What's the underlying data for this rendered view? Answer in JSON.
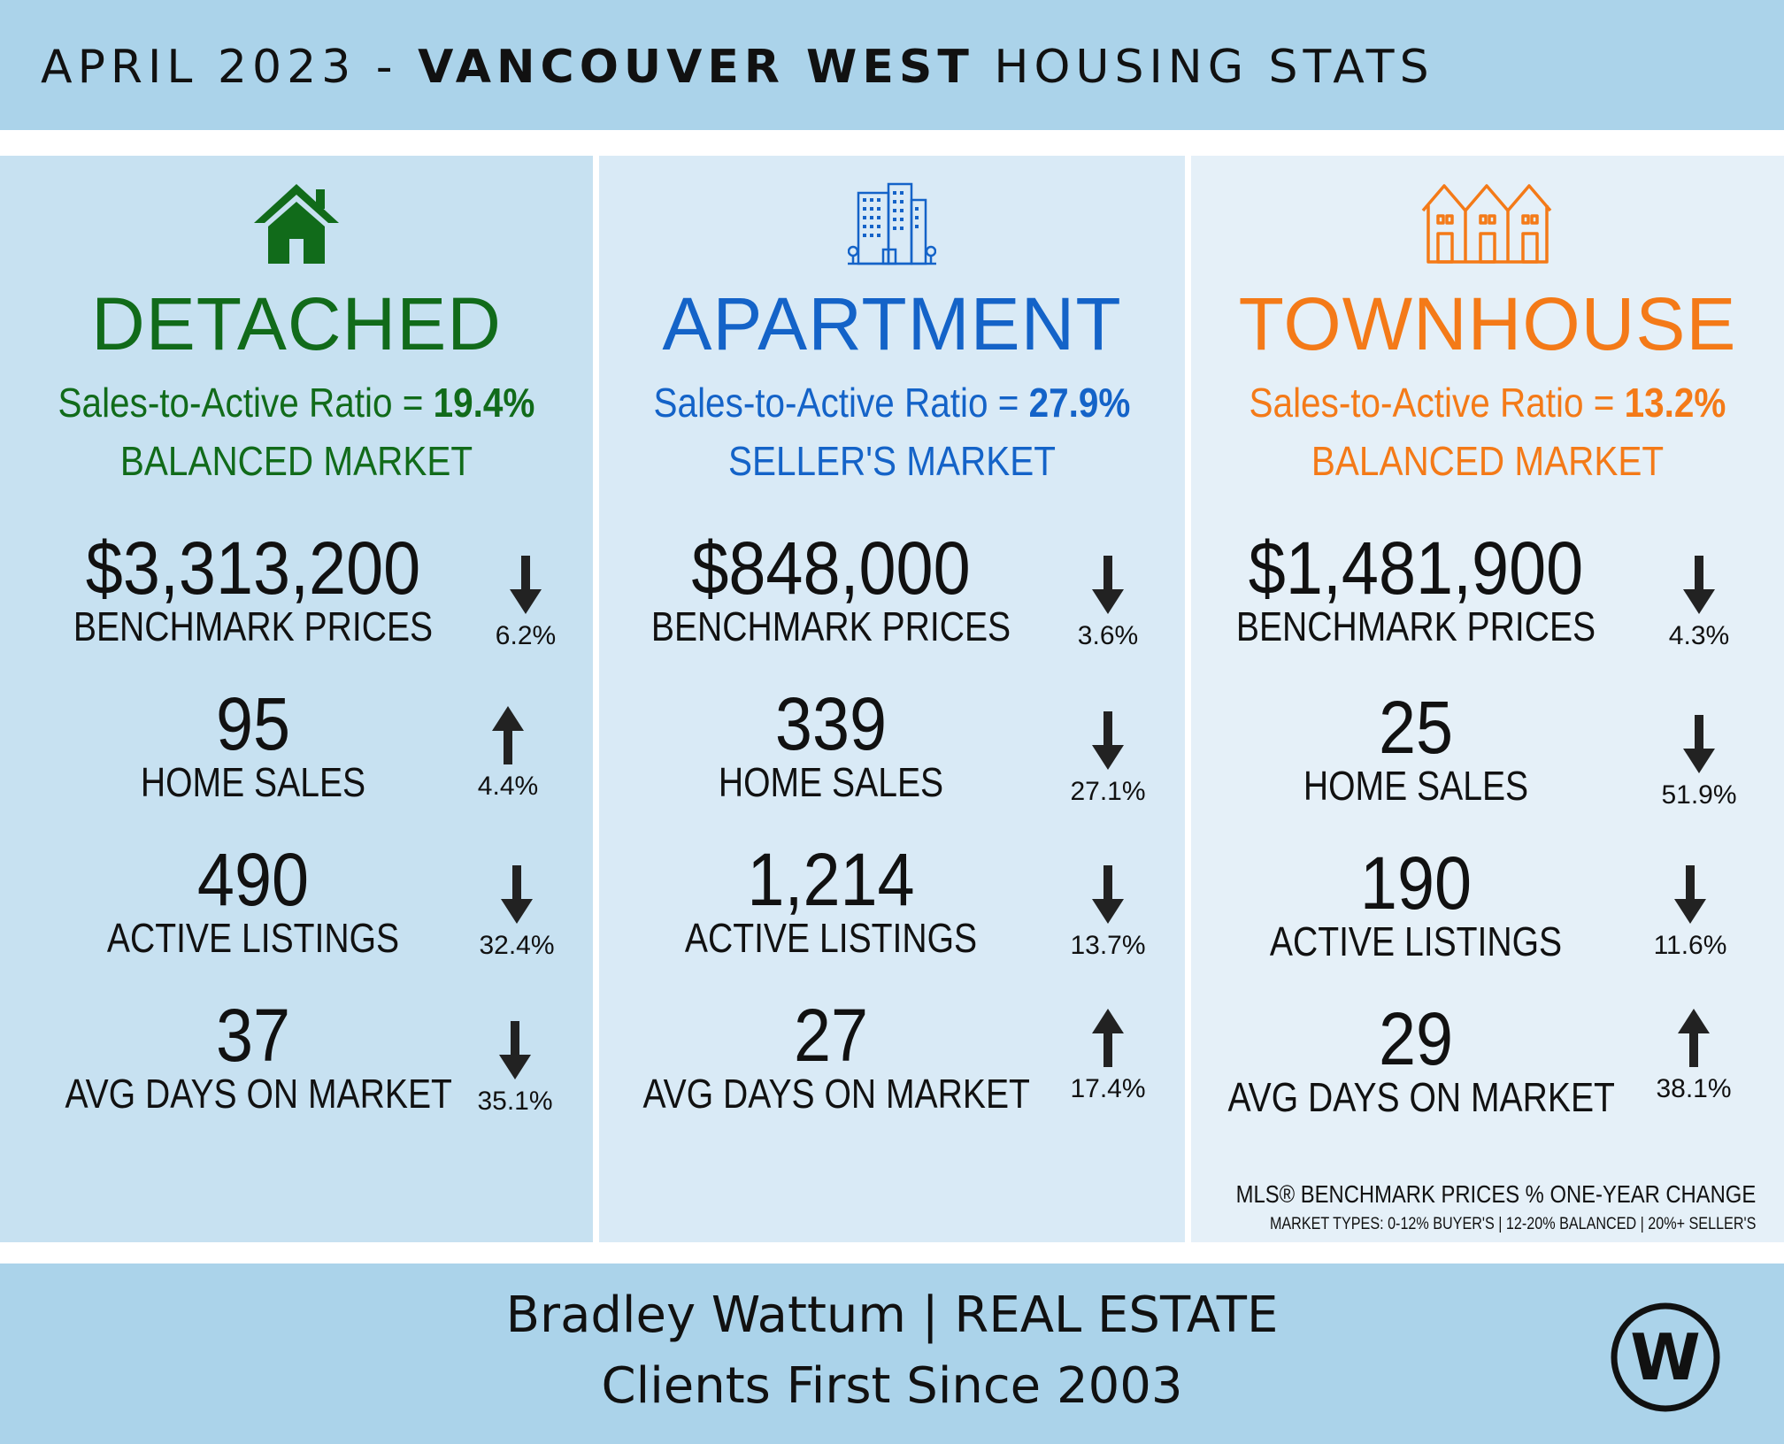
{
  "header": {
    "title_prefix": "APRIL 2023 - ",
    "title_bold": "VANCOUVER WEST",
    "title_suffix": " HOUSING STATS"
  },
  "columns": [
    {
      "type": "DETACHED",
      "color": "#116b1a",
      "icon": "house-icon",
      "ratio_label": "Sales-to-Active Ratio = ",
      "ratio_value": "19.4%",
      "market": "BALANCED MARKET",
      "stats": [
        {
          "value": "$3,313,200",
          "label": "BENCHMARK PRICES",
          "change": "6.2%",
          "direction": "down"
        },
        {
          "value": "95",
          "label": "HOME SALES",
          "change": "4.4%",
          "direction": "up"
        },
        {
          "value": "490",
          "label": "ACTIVE LISTINGS",
          "change": "32.4%",
          "direction": "down"
        },
        {
          "value": "37",
          "label": "AVG DAYS ON MARKET",
          "change": "35.1%",
          "direction": "down"
        }
      ]
    },
    {
      "type": "APARTMENT",
      "color": "#1463c8",
      "icon": "apartment-building-icon",
      "ratio_label": "Sales-to-Active Ratio = ",
      "ratio_value": "27.9%",
      "market": "SELLER'S MARKET",
      "stats": [
        {
          "value": "$848,000",
          "label": "BENCHMARK PRICES",
          "change": "3.6%",
          "direction": "down"
        },
        {
          "value": "339",
          "label": "HOME SALES",
          "change": "27.1%",
          "direction": "down"
        },
        {
          "value": "1,214",
          "label": "ACTIVE LISTINGS",
          "change": "13.7%",
          "direction": "down"
        },
        {
          "value": "27",
          "label": "AVG DAYS ON MARKET",
          "change": "17.4%",
          "direction": "up"
        }
      ]
    },
    {
      "type": "TOWNHOUSE",
      "color": "#f47a18",
      "icon": "townhouse-icon",
      "ratio_label": "Sales-to-Active Ratio = ",
      "ratio_value": "13.2%",
      "market": "BALANCED MARKET",
      "stats": [
        {
          "value": "$1,481,900",
          "label": "BENCHMARK PRICES",
          "change": "4.3%",
          "direction": "down"
        },
        {
          "value": "25",
          "label": "HOME SALES",
          "change": "51.9%",
          "direction": "down"
        },
        {
          "value": "190",
          "label": "ACTIVE LISTINGS",
          "change": "11.6%",
          "direction": "down"
        },
        {
          "value": "29",
          "label": "AVG DAYS ON MARKET",
          "change": "38.1%",
          "direction": "up"
        }
      ]
    }
  ],
  "notes": {
    "line1": "MLS® BENCHMARK PRICES % ONE-YEAR CHANGE",
    "line2": "MARKET TYPES: 0-12% BUYER'S | 12-20% BALANCED | 20%+ SELLER'S"
  },
  "footer": {
    "line1": "Bradley Wattum | REAL ESTATE",
    "line2": "Clients First Since 2003",
    "logo_letter": "W"
  }
}
